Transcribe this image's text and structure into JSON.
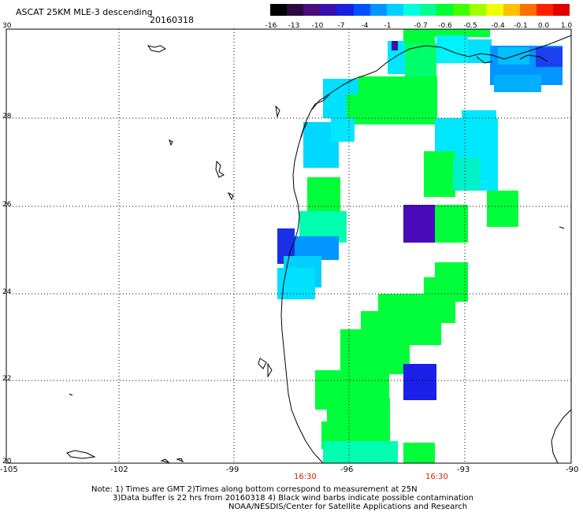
{
  "header": {
    "title": "ASCAT 25KM MLE-3 descending",
    "date": "20160318"
  },
  "colorbar": {
    "labels": [
      "-16",
      "-13",
      "-10",
      "-7",
      "-4",
      "-1",
      "-0.7",
      "-0.6",
      "-0.5",
      "-0.4",
      "-0.1",
      "0.0",
      "1.0"
    ],
    "colors": [
      "#000000",
      "#2a0a40",
      "#4a0c7a",
      "#3a0fb0",
      "#1a20e0",
      "#0050ff",
      "#0095ff",
      "#00d0ff",
      "#00ffe0",
      "#00ff90",
      "#00ff30",
      "#40ff00",
      "#a0ff00",
      "#f0ff00",
      "#ffc000",
      "#ff7000",
      "#ff2000",
      "#e00000"
    ]
  },
  "map": {
    "lat_labels": [
      "30",
      "28",
      "26",
      "24",
      "22",
      "20"
    ],
    "lon_labels": [
      "-105",
      "-102",
      "-99",
      "-96",
      "-93",
      "-90"
    ],
    "time_labels": [
      "16:30",
      "16:30"
    ]
  },
  "footnotes": [
    "Note: 1) Times are GMT 2)Times along bottom correspond to measurement at 25N",
    "3)Data buffer is 22 hrs from 20160318 4) Black wind barbs indicate possible contamination",
    "NOAA/NESDIS/Center for Satellite Applications and Research"
  ]
}
